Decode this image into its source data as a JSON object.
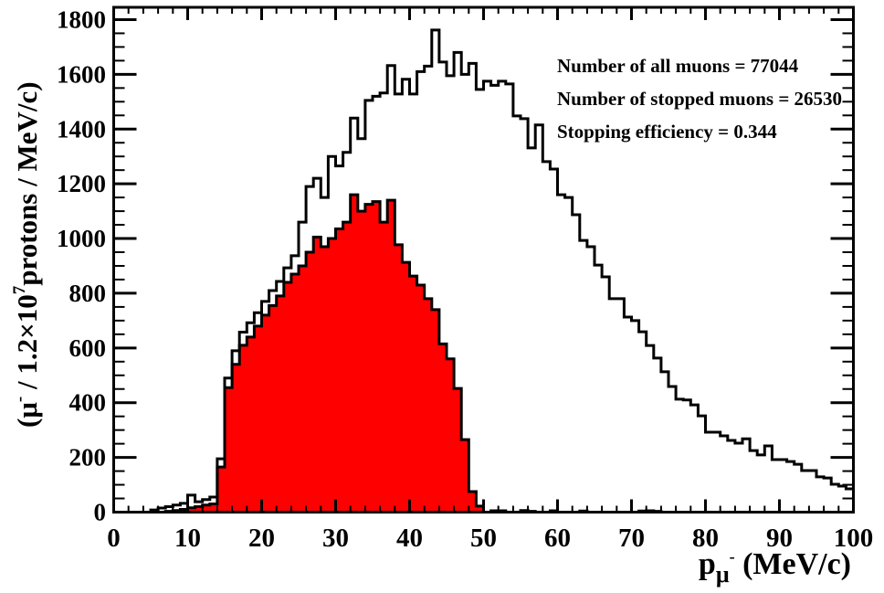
{
  "chart_data": {
    "type": "bar",
    "subtype": "step-histogram",
    "title": "",
    "bin_width": 1,
    "x_axis": {
      "min": 0,
      "max": 100,
      "major_ticks": [
        0,
        10,
        20,
        30,
        40,
        50,
        60,
        70,
        80,
        90,
        100
      ],
      "minor_tick_step": 2,
      "label_parts": [
        {
          "t": "p",
          "s": "base"
        },
        {
          "t": "μ",
          "s": "sub"
        },
        {
          "t": "-",
          "s": "subsup"
        },
        {
          "t": " (MeV/c)",
          "s": "base"
        }
      ]
    },
    "y_axis": {
      "min": 0,
      "max": 1800,
      "frame_max": 1845,
      "major_ticks": [
        0,
        200,
        400,
        600,
        800,
        1000,
        1200,
        1400,
        1600,
        1800
      ],
      "minor_tick_step": 50,
      "label_parts": [
        {
          "t": "(μ",
          "s": "base"
        },
        {
          "t": "-",
          "s": "sup"
        },
        {
          "t": " / 1.2×10",
          "s": "base"
        },
        {
          "t": "7",
          "s": "sup"
        },
        {
          "t": "protons / MeV/c)",
          "s": "base"
        }
      ]
    },
    "grid": false,
    "legend": "none",
    "series": [
      {
        "name": "all muons",
        "style": "outline",
        "line_color": "#000000",
        "fill_color": "none",
        "values": [
          0,
          0,
          0,
          0,
          0,
          8,
          15,
          20,
          26,
          32,
          62,
          38,
          46,
          55,
          195,
          490,
          590,
          658,
          692,
          729,
          770,
          810,
          843,
          893,
          937,
          1060,
          1190,
          1220,
          1150,
          1300,
          1265,
          1315,
          1440,
          1365,
          1505,
          1520,
          1532,
          1632,
          1528,
          1582,
          1528,
          1610,
          1630,
          1762,
          1645,
          1595,
          1680,
          1600,
          1640,
          1545,
          1575,
          1560,
          1575,
          1565,
          1448,
          1438,
          1331,
          1415,
          1281,
          1254,
          1160,
          1150,
          1087,
          993,
          970,
          903,
          860,
          780,
          780,
          713,
          700,
          659,
          609,
          563,
          513,
          459,
          413,
          410,
          392,
          352,
          292,
          292,
          279,
          262,
          252,
          268,
          225,
          209,
          242,
          192,
          192,
          185,
          175,
          152,
          152,
          129,
          125,
          102,
          95,
          85
        ]
      },
      {
        "name": "stopped muons",
        "style": "filled",
        "line_color": "#000000",
        "fill_color": "#ff0000",
        "values": [
          0,
          0,
          0,
          0,
          0,
          0,
          0,
          3,
          6,
          10,
          16,
          20,
          26,
          30,
          165,
          455,
          540,
          610,
          640,
          680,
          720,
          755,
          790,
          840,
          870,
          900,
          950,
          1005,
          970,
          1000,
          1035,
          1060,
          1160,
          1100,
          1125,
          1135,
          1060,
          1140,
          977,
          913,
          863,
          830,
          780,
          740,
          615,
          560,
          452,
          265,
          75,
          22,
          0,
          5,
          5,
          0,
          0,
          6,
          3,
          0,
          0,
          5,
          0,
          0,
          0,
          4,
          0,
          0,
          0,
          0,
          0,
          0,
          0,
          4,
          5,
          3,
          0,
          0,
          0,
          0,
          0,
          0,
          0,
          0,
          0,
          0,
          0,
          0,
          0,
          0,
          0,
          0,
          0,
          0,
          0,
          0,
          0,
          0,
          0,
          0,
          0,
          0
        ]
      }
    ]
  },
  "stats": {
    "line1": "Number of all muons = 77044",
    "line2": "Number of stopped muons = 26530",
    "line3": "Stopping efficiency = 0.344"
  },
  "colors": {
    "background": "#ffffff",
    "axis": "#000000",
    "all_muons_line": "#000000",
    "stopped_muons_fill": "#ff0000"
  }
}
